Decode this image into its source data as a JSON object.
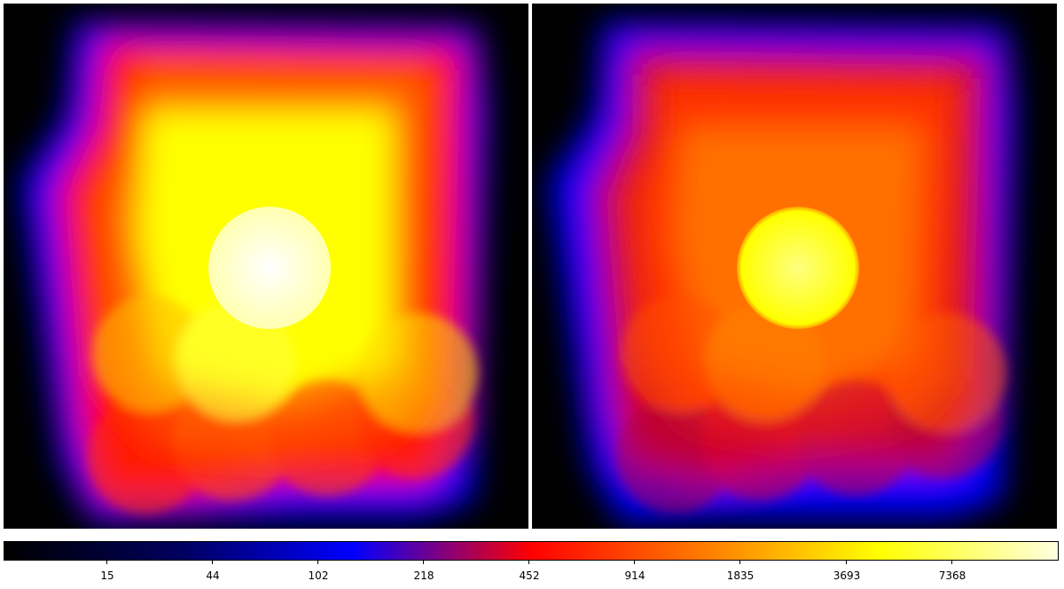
{
  "panels": [
    {
      "name": "left-exposure-map",
      "palette": "bright"
    },
    {
      "name": "right-exposure-map",
      "palette": "dim"
    }
  ],
  "colorbar": {
    "colormap": "heat",
    "stops": [
      "#000000",
      "#000060",
      "#0000ff",
      "#ff0000",
      "#ff8000",
      "#ffff00",
      "#ffffe0"
    ],
    "ticks": [
      "15",
      "44",
      "102",
      "218",
      "452",
      "914",
      "1835",
      "3693",
      "7368"
    ]
  }
}
